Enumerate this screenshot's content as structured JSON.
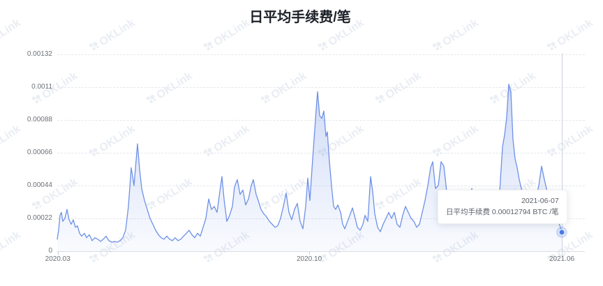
{
  "title": "日平均手续费/笔",
  "watermark": {
    "text": "OKLink"
  },
  "tooltip": {
    "date": "2021-06-07",
    "series_label": "日平均手续费",
    "value_text": "0.00012794",
    "unit": "BTC /笔"
  },
  "colors": {
    "line": "#6e91e6",
    "area_top": "rgba(110,145,230,0.40)",
    "area_bottom": "rgba(110,145,230,0.04)",
    "grid": "#e4e7ec",
    "axis": "#d9dce2",
    "crosshair": "#ccd1da",
    "dot": "#4b7be8",
    "label_text": "#6b7077",
    "title_text": "#1d2129"
  },
  "chart_data": {
    "type": "area",
    "title": "日平均手续费/笔",
    "ylabel": "BTC/笔",
    "grid": "dashed-horizontal",
    "legend_position": "none",
    "y_axis": {
      "range": [
        0,
        0.00132
      ],
      "ticks": [
        {
          "label": "0",
          "value": 0
        },
        {
          "label": "0.00022",
          "value": 0.00022
        },
        {
          "label": "0.00044",
          "value": 0.00044
        },
        {
          "label": "0.00066",
          "value": 0.00066
        },
        {
          "label": "0.00088",
          "value": 0.00088
        },
        {
          "label": "0.0011",
          "value": 0.0011
        },
        {
          "label": "0.00132",
          "value": 0.00132
        }
      ]
    },
    "x_axis": {
      "ticks": [
        {
          "label": "2020.03",
          "f": 0.001
        },
        {
          "label": "2020.10",
          "f": 0.4994
        },
        {
          "label": "2021.06",
          "f": 1.0
        }
      ]
    },
    "hover_point": {
      "f": 1.0,
      "value": 0.00012794,
      "date": "2021-06-07"
    },
    "series": [
      {
        "name": "日平均手续费",
        "points": [
          [
            0.0,
            8e-05
          ],
          [
            0.0028,
            0.00014
          ],
          [
            0.0055,
            0.00024
          ],
          [
            0.0083,
            0.00026
          ],
          [
            0.0111,
            0.0002
          ],
          [
            0.0152,
            0.00022
          ],
          [
            0.0194,
            0.00028
          ],
          [
            0.0235,
            0.00021
          ],
          [
            0.0277,
            0.00018
          ],
          [
            0.0318,
            0.00021
          ],
          [
            0.036,
            0.00016
          ],
          [
            0.0401,
            0.00017
          ],
          [
            0.0443,
            0.00012
          ],
          [
            0.0484,
            0.0001
          ],
          [
            0.0539,
            0.00012
          ],
          [
            0.0581,
            9e-05
          ],
          [
            0.0636,
            0.00011
          ],
          [
            0.0692,
            7e-05
          ],
          [
            0.0747,
            9e-05
          ],
          [
            0.0802,
            8e-05
          ],
          [
            0.0858,
            6.5e-05
          ],
          [
            0.0913,
            8e-05
          ],
          [
            0.0968,
            0.0001
          ],
          [
            0.1024,
            7e-05
          ],
          [
            0.1079,
            6e-05
          ],
          [
            0.1134,
            6.5e-05
          ],
          [
            0.119,
            6e-05
          ],
          [
            0.1245,
            7e-05
          ],
          [
            0.13,
            9e-05
          ],
          [
            0.1356,
            0.00014
          ],
          [
            0.1411,
            0.0003
          ],
          [
            0.1466,
            0.00056
          ],
          [
            0.1521,
            0.00044
          ],
          [
            0.1591,
            0.00072
          ],
          [
            0.1632,
            0.00055
          ],
          [
            0.1674,
            0.00042
          ],
          [
            0.1729,
            0.00034
          ],
          [
            0.1784,
            0.00028
          ],
          [
            0.184,
            0.00022
          ],
          [
            0.1895,
            0.00018
          ],
          [
            0.195,
            0.00014
          ],
          [
            0.2006,
            0.00011
          ],
          [
            0.2061,
            9e-05
          ],
          [
            0.2116,
            8e-05
          ],
          [
            0.2172,
            0.0001
          ],
          [
            0.2227,
            8e-05
          ],
          [
            0.2282,
            7e-05
          ],
          [
            0.2338,
            9e-05
          ],
          [
            0.2393,
            7e-05
          ],
          [
            0.2448,
            8e-05
          ],
          [
            0.2504,
            0.0001
          ],
          [
            0.2559,
            0.00012
          ],
          [
            0.2614,
            0.00014
          ],
          [
            0.267,
            0.00011
          ],
          [
            0.2725,
            9e-05
          ],
          [
            0.278,
            0.00012
          ],
          [
            0.2836,
            0.0001
          ],
          [
            0.2891,
            0.00016
          ],
          [
            0.2946,
            0.00022
          ],
          [
            0.3002,
            0.00035
          ],
          [
            0.3057,
            0.00028
          ],
          [
            0.3112,
            0.0003
          ],
          [
            0.3168,
            0.00026
          ],
          [
            0.3223,
            0.0004
          ],
          [
            0.3264,
            0.0005
          ],
          [
            0.3306,
            0.00035
          ],
          [
            0.3361,
            0.0002
          ],
          [
            0.3417,
            0.00024
          ],
          [
            0.3472,
            0.0003
          ],
          [
            0.3513,
            0.00043
          ],
          [
            0.3569,
            0.00048
          ],
          [
            0.3624,
            0.00038
          ],
          [
            0.3679,
            0.00041
          ],
          [
            0.3734,
            0.00031
          ],
          [
            0.379,
            0.00035
          ],
          [
            0.3845,
            0.00044
          ],
          [
            0.3887,
            0.00048
          ],
          [
            0.3942,
            0.00038
          ],
          [
            0.3983,
            0.00034
          ],
          [
            0.4039,
            0.00028
          ],
          [
            0.4094,
            0.00025
          ],
          [
            0.4149,
            0.00023
          ],
          [
            0.4205,
            0.0002
          ],
          [
            0.426,
            0.00018
          ],
          [
            0.4315,
            0.00016
          ],
          [
            0.4371,
            0.00017
          ],
          [
            0.4426,
            0.00022
          ],
          [
            0.4481,
            0.0003
          ],
          [
            0.4537,
            0.00039
          ],
          [
            0.4592,
            0.00026
          ],
          [
            0.4647,
            0.00021
          ],
          [
            0.4703,
            0.00028
          ],
          [
            0.4758,
            0.00032
          ],
          [
            0.4813,
            0.0002
          ],
          [
            0.4869,
            0.00015
          ],
          [
            0.4924,
            0.0003
          ],
          [
            0.4965,
            0.00049
          ],
          [
            0.5007,
            0.00034
          ],
          [
            0.5048,
            0.00055
          ],
          [
            0.509,
            0.00075
          ],
          [
            0.5131,
            0.00095
          ],
          [
            0.5159,
            0.00107
          ],
          [
            0.52,
            0.00091
          ],
          [
            0.5242,
            0.00089
          ],
          [
            0.5283,
            0.00094
          ],
          [
            0.5325,
            0.00077
          ],
          [
            0.5353,
            0.0008
          ],
          [
            0.5394,
            0.0006
          ],
          [
            0.5436,
            0.00044
          ],
          [
            0.5477,
            0.0003
          ],
          [
            0.5519,
            0.00028
          ],
          [
            0.556,
            0.00031
          ],
          [
            0.5615,
            0.00026
          ],
          [
            0.5657,
            0.00018
          ],
          [
            0.5699,
            0.00015
          ],
          [
            0.5754,
            0.0002
          ],
          [
            0.5809,
            0.00025
          ],
          [
            0.5851,
            0.00029
          ],
          [
            0.5906,
            0.00022
          ],
          [
            0.5947,
            0.00016
          ],
          [
            0.6003,
            0.00014
          ],
          [
            0.6058,
            0.00018
          ],
          [
            0.61,
            0.00024
          ],
          [
            0.6155,
            0.0002
          ],
          [
            0.621,
            0.0005
          ],
          [
            0.6252,
            0.0004
          ],
          [
            0.6293,
            0.00025
          ],
          [
            0.6349,
            0.00016
          ],
          [
            0.6404,
            0.00013
          ],
          [
            0.6459,
            0.00018
          ],
          [
            0.6515,
            0.00022
          ],
          [
            0.657,
            0.00026
          ],
          [
            0.6625,
            0.00022
          ],
          [
            0.668,
            0.00026
          ],
          [
            0.6736,
            0.00018
          ],
          [
            0.6791,
            0.00016
          ],
          [
            0.6846,
            0.00024
          ],
          [
            0.6902,
            0.0003
          ],
          [
            0.6957,
            0.00026
          ],
          [
            0.7012,
            0.00022
          ],
          [
            0.7068,
            0.0002
          ],
          [
            0.7123,
            0.00016
          ],
          [
            0.7178,
            0.00018
          ],
          [
            0.7234,
            0.00026
          ],
          [
            0.7289,
            0.00034
          ],
          [
            0.7344,
            0.00044
          ],
          [
            0.74,
            0.00056
          ],
          [
            0.7441,
            0.0006
          ],
          [
            0.7497,
            0.00042
          ],
          [
            0.7552,
            0.00044
          ],
          [
            0.7607,
            0.0006
          ],
          [
            0.7663,
            0.00057
          ],
          [
            0.7718,
            0.0004
          ],
          [
            0.7773,
            0.0003
          ],
          [
            0.7829,
            0.00026
          ],
          [
            0.7884,
            0.00033
          ],
          [
            0.7939,
            0.00028
          ],
          [
            0.7995,
            0.00022
          ],
          [
            0.805,
            0.00026
          ],
          [
            0.8105,
            0.0003
          ],
          [
            0.8161,
            0.00036
          ],
          [
            0.8216,
            0.00042
          ],
          [
            0.8271,
            0.00034
          ],
          [
            0.8327,
            0.00028
          ],
          [
            0.8382,
            0.00032
          ],
          [
            0.8437,
            0.00026
          ],
          [
            0.8493,
            0.0003
          ],
          [
            0.8548,
            0.00024
          ],
          [
            0.8603,
            0.00028
          ],
          [
            0.8659,
            0.00024
          ],
          [
            0.8714,
            0.00028
          ],
          [
            0.8769,
            0.0004
          ],
          [
            0.8825,
            0.0007
          ],
          [
            0.8866,
            0.00078
          ],
          [
            0.8907,
            0.0009
          ],
          [
            0.8949,
            0.00112
          ],
          [
            0.899,
            0.00107
          ],
          [
            0.9032,
            0.00075
          ],
          [
            0.9073,
            0.00062
          ],
          [
            0.9115,
            0.00056
          ],
          [
            0.9156,
            0.00048
          ],
          [
            0.9212,
            0.0004
          ],
          [
            0.9267,
            0.00034
          ],
          [
            0.9322,
            0.0003
          ],
          [
            0.9378,
            0.00033
          ],
          [
            0.9433,
            0.0003
          ],
          [
            0.9488,
            0.00036
          ],
          [
            0.9544,
            0.00044
          ],
          [
            0.9599,
            0.00057
          ],
          [
            0.9654,
            0.00048
          ],
          [
            0.971,
            0.0004
          ],
          [
            0.9765,
            0.00034
          ],
          [
            0.982,
            0.0003
          ],
          [
            0.9876,
            0.00024
          ],
          [
            0.9931,
            0.0002
          ],
          [
            0.9972,
            0.00016
          ],
          [
            1.0,
            0.00012794
          ]
        ]
      }
    ]
  }
}
